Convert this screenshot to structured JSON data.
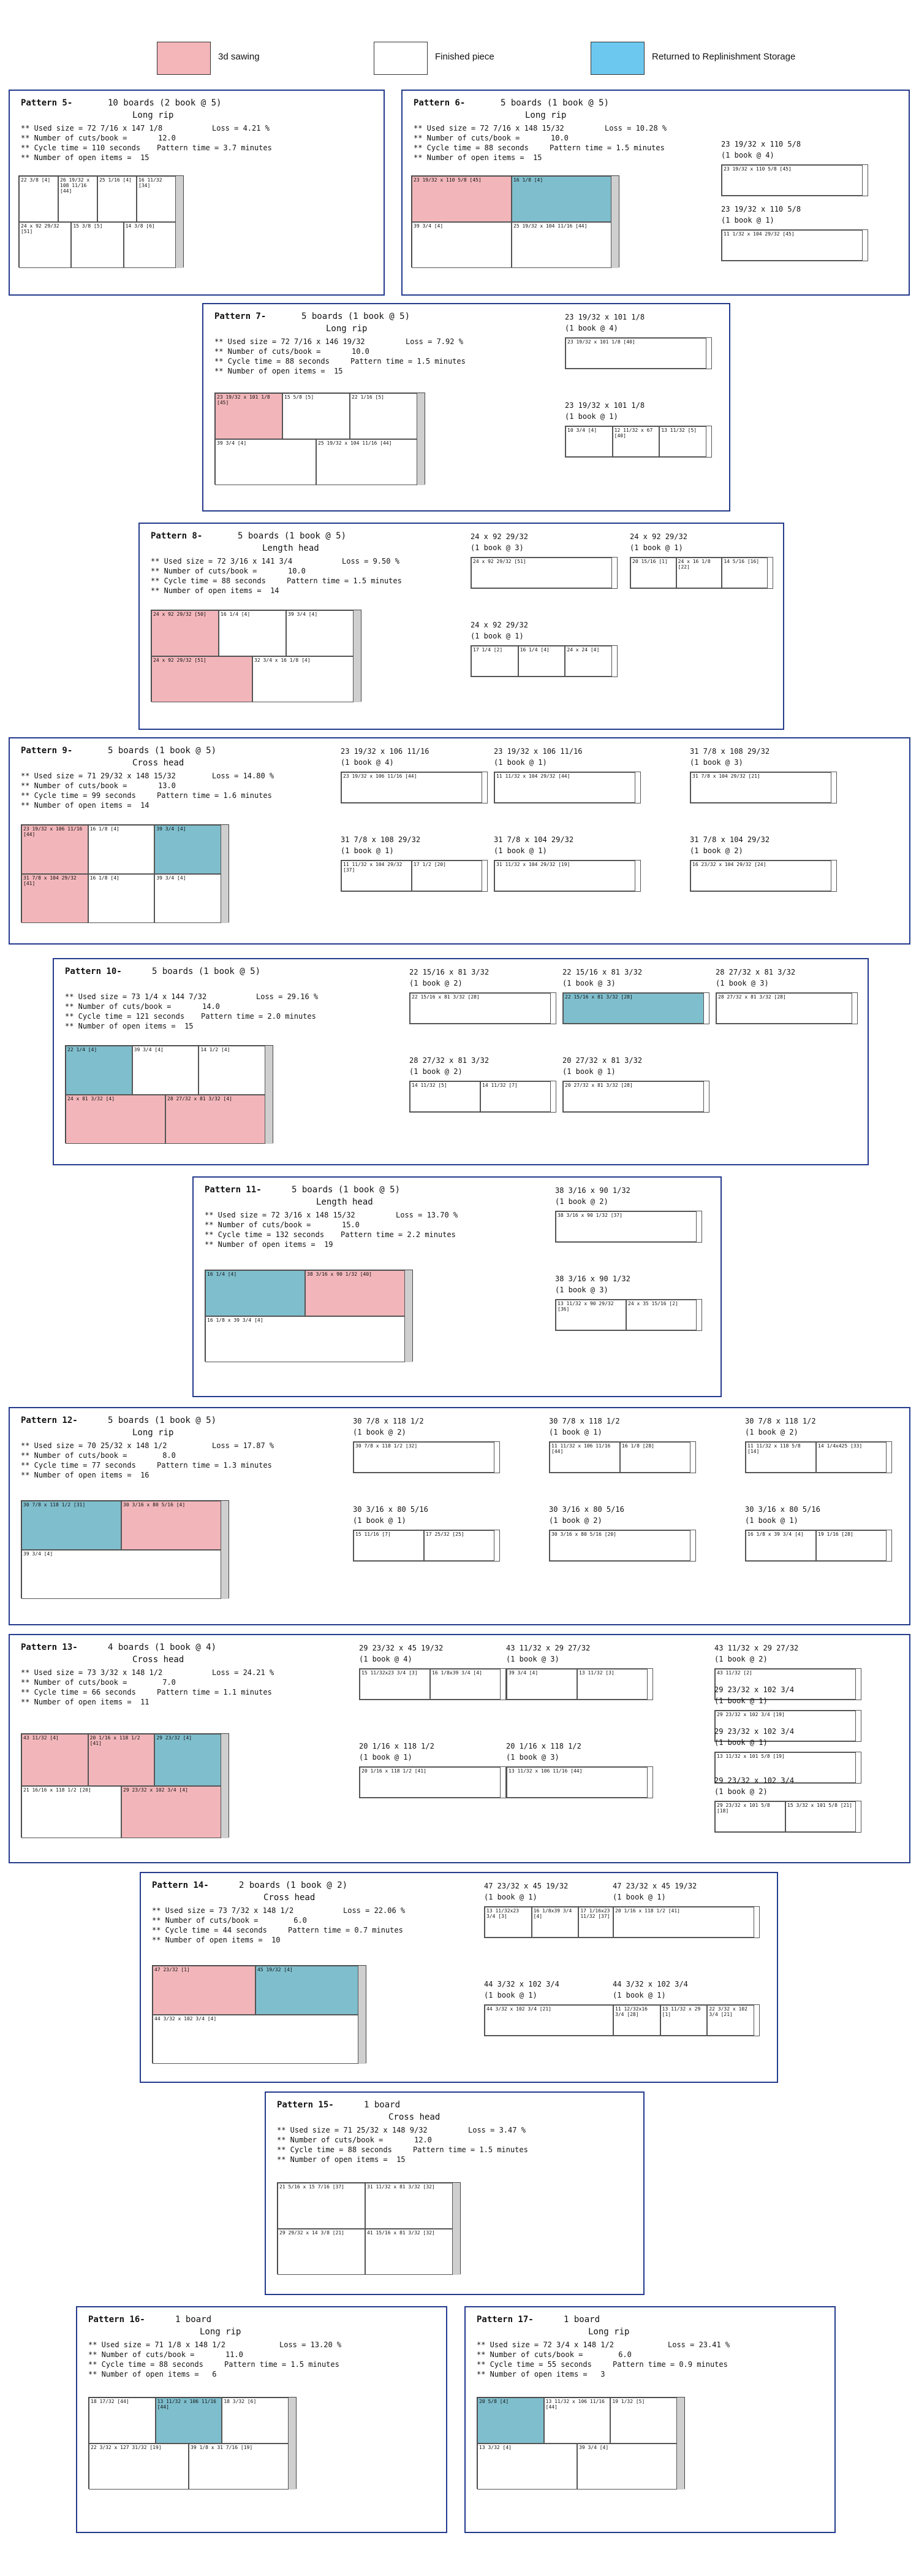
{
  "legend": [
    {
      "label": "3d sawing",
      "color": "#f4b6b9"
    },
    {
      "label": "Finished piece",
      "color": "#ffffff"
    },
    {
      "label": "Returned to Replinishment Storage",
      "color": "#6cc8ef"
    }
  ],
  "patterns": [
    {
      "title": "Pattern 5-",
      "boards": "10 boards (2 book @ 5)",
      "mode": "Long rip",
      "used": "** Used size = 72 7/16 x 147 1/8",
      "loss": "Loss = 4.21 %",
      "cuts": "** Number of cuts/book =       12.0",
      "cycle": "** Cycle time = 110 seconds",
      "ptime": "Pattern time = 3.7 minutes",
      "open": "** Number of open items =  15",
      "pieces": [
        "22 3/8 [4]",
        "26 19/32 x 108 11/16 [44]",
        "25 1/16 [4]",
        "16 11/32 [34]",
        "24 x 92 29/32 [51]",
        "15 3/8 [5]",
        "14 3/8 [6]"
      ],
      "books": []
    },
    {
      "title": "Pattern 6-",
      "boards": "5 boards (1 book @ 5)",
      "mode": "Long rip",
      "used": "** Used size = 72 7/16 x 148 15/32",
      "loss": "Loss = 10.28 %",
      "cuts": "** Number of cuts/book =       10.0",
      "cycle": "** Cycle time = 88 seconds",
      "ptime": "Pattern time = 1.5 minutes",
      "open": "** Number of open items =  15",
      "pieces": [
        "23 19/32 x 110 5/8 [45]",
        "16 1/8 [4]",
        "39 3/4 [4]",
        "25 19/32 x 104 11/16 [44]"
      ],
      "books": [
        {
          "size": "23 19/32 x 110 5/8",
          "book": "(1 book @ 4)",
          "pieces": [
            "23 19/32 x 110 5/8 [45]"
          ]
        },
        {
          "size": "23 19/32 x 110 5/8",
          "book": "(1 book @ 1)",
          "pieces": [
            "11 1/32 x 104 29/32 [45]"
          ]
        }
      ]
    },
    {
      "title": "Pattern 7-",
      "boards": "5 boards (1 book @ 5)",
      "mode": "Long rip",
      "used": "** Used size = 72 7/16 x 146 19/32",
      "loss": "Loss = 7.92 %",
      "cuts": "** Number of cuts/book =       10.0",
      "cycle": "** Cycle time = 88 seconds",
      "ptime": "Pattern time = 1.5 minutes",
      "open": "** Number of open items =  15",
      "pieces": [
        "23 19/32 x 101 1/8 [45]",
        "15 5/8 [5]",
        "22 1/16 [5]",
        "39 3/4 [4]",
        "25 19/32 x 104 11/16 [44]"
      ],
      "books": [
        {
          "size": "23 19/32 x 101 1/8",
          "book": "(1 book @ 4)",
          "pieces": [
            "23 19/32 x 101 1/8 [40]"
          ]
        },
        {
          "size": "23 19/32 x 101 1/8",
          "book": "(1 book @ 1)",
          "pieces": [
            "10 3/4 [4]",
            "12 11/32 x 67 [40]",
            "13 11/32 [5]"
          ]
        }
      ]
    },
    {
      "title": "Pattern 8-",
      "boards": "5 boards (1 book @ 5)",
      "mode": "Length head",
      "used": "** Used size = 72 3/16 x 141 3/4",
      "loss": "Loss = 9.50 %",
      "cuts": "** Number of cuts/book =       10.0",
      "cycle": "** Cycle time = 88 seconds",
      "ptime": "Pattern time = 1.5 minutes",
      "open": "** Number of open items =  14",
      "pieces": [
        "24 x 92 29/32 [50]",
        "16 1/4 [4]",
        "39 3/4 [4]",
        "24 x 92 29/32 [51]",
        "32 3/4 x 16 1/8 [4]"
      ],
      "books": [
        {
          "size": "24 x 92 29/32",
          "book": "(1 book @ 3)",
          "pieces": [
            "24 x 92 29/32 [51]"
          ]
        },
        {
          "size": "24 x 92 29/32",
          "book": "(1 book @ 1)",
          "pieces": [
            "20 15/16 [1]",
            "24 x 16 1/8 [22]",
            "14 5/16 [16]"
          ]
        },
        {
          "size": "24 x 92 29/32",
          "book": "(1 book @ 1)",
          "pieces": [
            "17 1/4 [2]",
            "16 1/4 [4]",
            "24 x 24 [4]"
          ]
        }
      ]
    },
    {
      "title": "Pattern 9-",
      "boards": "5 boards (1 book @ 5)",
      "mode": "Cross head",
      "used": "** Used size = 71 29/32 x 148 15/32",
      "loss": "Loss = 14.80 %",
      "cuts": "** Number of cuts/book =       13.0",
      "cycle": "** Cycle time = 99 seconds",
      "ptime": "Pattern time = 1.6 minutes",
      "open": "** Number of open items =  14",
      "pieces": [
        "23 19/32 x 106 11/16 [44]",
        "16 1/8 [4]",
        "39 3/4 [4]",
        "31 7/8 x 104 29/32 [41]",
        "16 1/8 [4]",
        "39 3/4 [4]"
      ],
      "books": [
        {
          "size": "23 19/32 x 106 11/16",
          "book": "(1 book @ 4)",
          "pieces": [
            "23 19/32 x 106 11/16 [44]"
          ]
        },
        {
          "size": "23 19/32 x 106 11/16",
          "book": "(1 book @ 1)",
          "pieces": [
            "11 11/32 x 104 29/32 [44]"
          ]
        },
        {
          "size": "31 7/8 x 108 29/32",
          "book": "(1 book @ 3)",
          "pieces": [
            "31 7/8 x 104 29/32 [21]"
          ]
        },
        {
          "size": "31 7/8 x 108 29/32",
          "book": "(1 book @ 1)",
          "pieces": [
            "11 11/32 x 104 29/32 [37]",
            "17 1/2 [20]"
          ]
        },
        {
          "size": "31 7/8 x 104 29/32",
          "book": "(1 book @ 1)",
          "pieces": [
            "31 11/32 x 104 29/32 [19]"
          ]
        },
        {
          "size": "31 7/8 x 104 29/32",
          "book": "(1 book @ 2)",
          "pieces": [
            "16 23/32 x 104 29/32 [24]"
          ]
        }
      ]
    },
    {
      "title": "Pattern 10-",
      "boards": "5 boards (1 book @ 5)",
      "mode": "",
      "used": "** Used size = 73 1/4 x 144 7/32",
      "loss": "Loss = 29.16 %",
      "cuts": "** Number of cuts/book =       14.0",
      "cycle": "** Cycle time = 121 seconds",
      "ptime": "Pattern time = 2.0 minutes",
      "open": "** Number of open items =  15",
      "pieces": [
        "22 1/4 [4]",
        "39 3/4 [4]",
        "14 1/2 [4]",
        "24 x 81 3/32 [4]",
        "28 27/32 x 81 3/32 [4]"
      ],
      "books": [
        {
          "size": "22 15/16 x 81 3/32",
          "book": "(1 book @ 2)",
          "pieces": [
            "22 15/16 x 81 3/32 [28]"
          ]
        },
        {
          "size": "22 15/16 x 81 3/32",
          "book": "(1 book @ 3)",
          "pieces": [
            "22 15/16 x 81 3/32 [28]"
          ]
        },
        {
          "size": "28 27/32 x 81 3/32",
          "book": "(1 book @ 3)",
          "pieces": [
            "28 27/32 x 81 3/32 [28]"
          ]
        },
        {
          "size": "28 27/32 x 81 3/32",
          "book": "(1 book @ 2)",
          "pieces": [
            "14 11/32 [5]",
            "14 11/32 [7]"
          ]
        },
        {
          "size": "20 27/32 x 81 3/32",
          "book": "(1 book @ 1)",
          "pieces": [
            "20 27/32 x 81 3/32 [28]"
          ]
        }
      ]
    },
    {
      "title": "Pattern 11-",
      "boards": "5 boards (1 book @ 5)",
      "mode": "Length head",
      "used": "** Used size = 72 3/16 x 148 15/32",
      "loss": "Loss = 13.70 %",
      "cuts": "** Number of cuts/book =       15.0",
      "cycle": "** Cycle time = 132 seconds",
      "ptime": "Pattern time = 2.2 minutes",
      "open": "** Number of open items =  19",
      "pieces": [
        "16 1/4 [4]",
        "38 3/16 x 90 1/32 [40]",
        "16 1/8 x 39 3/4 [4]"
      ],
      "books": [
        {
          "size": "38 3/16 x 90 1/32",
          "book": "(1 book @ 2)",
          "pieces": [
            "38 3/16 x 90 1/32 [37]"
          ]
        },
        {
          "size": "38 3/16 x 90 1/32",
          "book": "(1 book @ 3)",
          "pieces": [
            "13 11/32 x 90 29/32 [36]",
            "24 x 35 15/16 [2]"
          ]
        }
      ]
    },
    {
      "title": "Pattern 12-",
      "boards": "5 boards (1 book @ 5)",
      "mode": "Long rip",
      "used": "** Used size = 70 25/32 x 148 1/2",
      "loss": "Loss = 17.87 %",
      "cuts": "** Number of cuts/book =        8.0",
      "cycle": "** Cycle time = 77 seconds",
      "ptime": "Pattern time = 1.3 minutes",
      "open": "** Number of open items =  16",
      "pieces": [
        "30 7/8 x 118 1/2 [31]",
        "30 3/16 x 80 5/16 [4]",
        "39 3/4 [4]"
      ],
      "books": [
        {
          "size": "30 7/8 x 118 1/2",
          "book": "(1 book @ 2)",
          "pieces": [
            "30 7/8 x 118 1/2 [32]"
          ]
        },
        {
          "size": "30 7/8 x 118 1/2",
          "book": "(1 book @ 1)",
          "pieces": [
            "11 11/32 x 106 11/16 [44]",
            "16 1/8 [28]"
          ]
        },
        {
          "size": "30 7/8 x 118 1/2",
          "book": "(1 book @ 2)",
          "pieces": [
            "11 11/32 x 118 5/8 [14]",
            "14 1/4x425 [33]"
          ]
        },
        {
          "size": "30 3/16 x 80 5/16",
          "book": "(1 book @ 1)",
          "pieces": [
            "15 11/16 [7]",
            "17 25/32 [25]"
          ]
        },
        {
          "size": "30 3/16 x 80 5/16",
          "book": "(1 book @ 2)",
          "pieces": [
            "30 3/16 x 80 5/16 [20]"
          ]
        },
        {
          "size": "30 3/16 x 80 5/16",
          "book": "(1 book @ 1)",
          "pieces": [
            "16 1/8 x 39 3/4 [4]",
            "19 1/16 [28]"
          ]
        }
      ]
    },
    {
      "title": "Pattern 13-",
      "boards": "4 boards (1 book @ 4)",
      "mode": "Cross head",
      "used": "** Used size = 73 3/32 x 148 1/2",
      "loss": "Loss = 24.21 %",
      "cuts": "** Number of cuts/book =        7.0",
      "cycle": "** Cycle time = 66 seconds",
      "ptime": "Pattern time = 1.1 minutes",
      "open": "** Number of open items =  11",
      "pieces": [
        "43 11/32 [4]",
        "20 1/16 x 118 1/2 [41]",
        "29 23/32 [4]",
        "21 16/16 x 118 1/2 [20]",
        "29 23/32 x 102 3/4 [4]"
      ],
      "books": [
        {
          "size": "29 23/32 x 45 19/32",
          "book": "(1 book @ 4)",
          "pieces": [
            "15 11/32x23 3/4 [3]",
            "16 1/8x39 3/4 [4]"
          ]
        },
        {
          "size": "43 11/32 x 29 27/32",
          "book": "(1 book @ 3)",
          "pieces": [
            "39 3/4 [4]",
            "13 11/32 [3]"
          ]
        },
        {
          "size": "43 11/32 x 29 27/32",
          "book": "(1 book @ 2)",
          "pieces": [
            "43 11/32 [2]"
          ]
        },
        {
          "size": "20 1/16 x 118 1/2",
          "book": "(1 book @ 1)",
          "pieces": [
            "20 1/16 x 118 1/2 [41]"
          ]
        },
        {
          "size": "20 1/16 x 118 1/2",
          "book": "(1 book @ 3)",
          "pieces": [
            "13 11/32 x 106 11/16 [44]"
          ]
        },
        {
          "size": "29 23/32 x 102 3/4",
          "book": "(1 book @ 1)",
          "pieces": [
            "29 23/32 x 102 3/4 [19]"
          ]
        },
        {
          "size": "29 23/32 x 102 3/4",
          "book": "(1 book @ 1)",
          "pieces": [
            "13 11/32 x 101 5/8 [19]"
          ]
        },
        {
          "size": "29 23/32 x 102 3/4",
          "book": "(1 book @ 2)",
          "pieces": [
            "29 23/32 x 101 5/8 [18]",
            "15 3/32 x 101 5/8 [21]"
          ]
        }
      ]
    },
    {
      "title": "Pattern 14-",
      "boards": "2 boards (1 book @ 2)",
      "mode": "Cross head",
      "used": "** Used size = 73 7/32 x 148 1/2",
      "loss": "Loss = 22.06 %",
      "cuts": "** Number of cuts/book =        6.0",
      "cycle": "** Cycle time = 44 seconds",
      "ptime": "Pattern time = 0.7 minutes",
      "open": "** Number of open items =  10",
      "pieces": [
        "47 23/32 [1]",
        "45 19/32 [4]",
        "44 3/32 x 102 3/4 [4]"
      ],
      "books": [
        {
          "size": "47 23/32 x 45 19/32",
          "book": "(1 book @ 1)",
          "pieces": [
            "13 11/32x23 3/4 [3]",
            "16 1/8x39 3/4 [4]",
            "17 1/16x23 11/32 [37]"
          ]
        },
        {
          "size": "47 23/32 x 45 19/32",
          "book": "(1 book @ 1)",
          "pieces": [
            "20 1/16 x 118 1/2 [41]"
          ]
        },
        {
          "size": "44 3/32 x 102 3/4",
          "book": "(1 book @ 1)",
          "pieces": [
            "44 3/32 x 102 3/4 [21]"
          ]
        },
        {
          "size": "44 3/32 x 102 3/4",
          "book": "(1 book @ 1)",
          "pieces": [
            "11 12/32x16 3/4 [28]",
            "13 11/32 x 29 [1]",
            "22 3/32 x 102 3/4 [21]"
          ]
        }
      ]
    },
    {
      "title": "Pattern 15-",
      "boards": "1 board",
      "mode": "Cross head",
      "used": "** Used size = 71 25/32 x 148 9/32",
      "loss": "Loss = 3.47 %",
      "cuts": "** Number of cuts/book =       12.0",
      "cycle": "** Cycle time = 88 seconds",
      "ptime": "Pattern time = 1.5 minutes",
      "open": "** Number of open items =  15",
      "pieces": [
        "21 5/16 x 15 7/16 [37]",
        "31 11/32 x 81 3/32 [32]",
        "29 29/32 x 14 3/8 [21]",
        "41 15/16 x 81 3/32 [32]"
      ],
      "books": []
    },
    {
      "title": "Pattern 16-",
      "boards": "1 board",
      "mode": "Long rip",
      "used": "** Used size = 71 1/8 x 148 1/2",
      "loss": "Loss = 13.20 %",
      "cuts": "** Number of cuts/book =       11.0",
      "cycle": "** Cycle time = 88 seconds",
      "ptime": "Pattern time = 1.5 minutes",
      "open": "** Number of open items =   6",
      "pieces": [
        "18 17/32 [44]",
        "13 11/32 x 106 11/16 [44]",
        "18 3/32 [6]",
        "22 3/32 x 127 31/32 [19]",
        "39 1/8 x 31 7/16 [19]"
      ],
      "books": []
    },
    {
      "title": "Pattern 17-",
      "boards": "1 board",
      "mode": "Long rip",
      "used": "** Used size = 72 3/4 x 148 1/2",
      "loss": "Loss = 23.41 %",
      "cuts": "** Number of cuts/book =        6.0",
      "cycle": "** Cycle time = 55 seconds",
      "ptime": "Pattern time = 0.9 minutes",
      "open": "** Number of open items =   3",
      "pieces": [
        "20 5/8 [4]",
        "13 11/32 x 106 11/16 [44]",
        "19 1/32 [5]",
        "13 3/32 [4]",
        "39 3/4 [4]"
      ],
      "books": []
    }
  ]
}
